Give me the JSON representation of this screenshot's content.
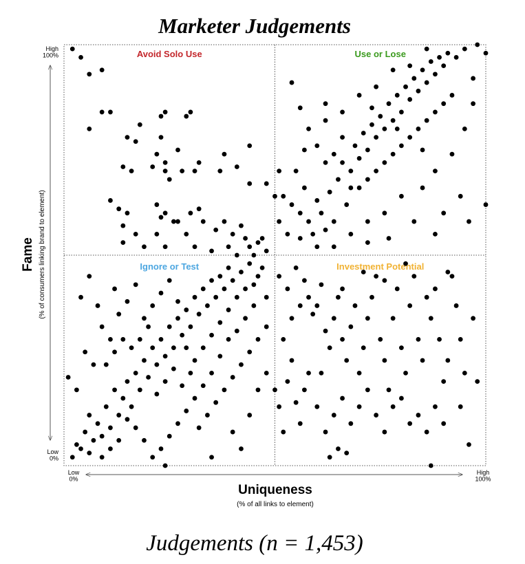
{
  "chart_data": {
    "type": "scatter",
    "title": "Marketer Judgements",
    "caption": "Judgements (n = 1,453)",
    "x_label": "Uniqueness",
    "x_sublabel": "(% of all links to element)",
    "y_label": "Fame",
    "y_sublabel": "(% of consumers linking brand to element)",
    "annotations": [
      {
        "text": "Avoid Solo Use",
        "color": "#c3262b"
      },
      {
        "text": "Use or Lose",
        "color": "#3b9a1e"
      },
      {
        "text": "Ignore or Test",
        "color": "#4ca6e0"
      },
      {
        "text": "Investment Potential",
        "color": "#f1b233"
      }
    ],
    "color": "#000000",
    "xlim": [
      0,
      100
    ],
    "ylim": [
      0,
      100
    ],
    "xticks": [
      {
        "value": 0,
        "label": "Low\n0%"
      },
      {
        "value": 100,
        "label": "High\n100%"
      }
    ],
    "yticks": [
      {
        "value": 0,
        "label": "Low\n0%"
      },
      {
        "value": 100,
        "label": "High\n100%"
      }
    ],
    "x": [
      2,
      4,
      6,
      9,
      9,
      6,
      11,
      23,
      24,
      18,
      15,
      17,
      23,
      22,
      24,
      27,
      29,
      30,
      16,
      14,
      21,
      24,
      25,
      28,
      32,
      31,
      37,
      41,
      44,
      38,
      44,
      48,
      50,
      11,
      13,
      15,
      14,
      17,
      22,
      23,
      24,
      26,
      30,
      32,
      33,
      36,
      38,
      40,
      42,
      43,
      44,
      46,
      47,
      19,
      24,
      29,
      31,
      35,
      39,
      41,
      45,
      48,
      14,
      22,
      27,
      52,
      54,
      56,
      57,
      58,
      59,
      60,
      61,
      62,
      63,
      64,
      65,
      66,
      67,
      68,
      69,
      70,
      71,
      72,
      73,
      74,
      75,
      76,
      77,
      78,
      79,
      80,
      81,
      82,
      83,
      84,
      85,
      86,
      87,
      88,
      89,
      90,
      91,
      93,
      95,
      98,
      97,
      100,
      54,
      56,
      58,
      60,
      62,
      64,
      66,
      68,
      70,
      72,
      74,
      76,
      78,
      80,
      82,
      84,
      86,
      88,
      90,
      92,
      95,
      97,
      92,
      88,
      85,
      80,
      76,
      72,
      68,
      64,
      60,
      56,
      53,
      51,
      55,
      57,
      62,
      66,
      70,
      74,
      78,
      82,
      86,
      94,
      90,
      96,
      100,
      83,
      77,
      72,
      88,
      51,
      62,
      73,
      79,
      85,
      2,
      3,
      4,
      5,
      6,
      7,
      8,
      6,
      9,
      10,
      11,
      12,
      13,
      14,
      15,
      16,
      17,
      18,
      19,
      20,
      21,
      22,
      23,
      24,
      25,
      26,
      27,
      28,
      29,
      30,
      31,
      32,
      33,
      34,
      35,
      36,
      37,
      38,
      39,
      40,
      42,
      44,
      46,
      48,
      45,
      43,
      41,
      39,
      37,
      35,
      33,
      31,
      29,
      27,
      25,
      23,
      21,
      19,
      17,
      15,
      13,
      11,
      9,
      1,
      3,
      5,
      7,
      9,
      11,
      13,
      15,
      17,
      6,
      4,
      8,
      12,
      19,
      21,
      23,
      25,
      27,
      29,
      31,
      33,
      35,
      37,
      39,
      41,
      43,
      45,
      47,
      16,
      18,
      20,
      22,
      24,
      26,
      28,
      30,
      32,
      34,
      36,
      38,
      40,
      42,
      44,
      46,
      48,
      40,
      44,
      46,
      48,
      24,
      35,
      42,
      10,
      12,
      14,
      51,
      53,
      55,
      57,
      58,
      59,
      60,
      61,
      62,
      63,
      64,
      65,
      66,
      67,
      68,
      69,
      70,
      71,
      72,
      73,
      74,
      75,
      76,
      77,
      78,
      79,
      80,
      81,
      82,
      83,
      84,
      85,
      86,
      87,
      88,
      89,
      90,
      91,
      92,
      93,
      94,
      95,
      97,
      98,
      52,
      53,
      54,
      55,
      56,
      57,
      58,
      60,
      62,
      64,
      66,
      68,
      70,
      72,
      74,
      76,
      78,
      80,
      82,
      84,
      86,
      88,
      90,
      63,
      65,
      67,
      50,
      51,
      52,
      54,
      56,
      61,
      66,
      71,
      76,
      81,
      91,
      94,
      96,
      87
    ],
    "values": [
      99,
      97,
      93,
      94,
      84,
      80,
      84,
      83,
      84,
      81,
      78,
      77,
      78,
      74,
      72,
      75,
      83,
      84,
      70,
      71,
      71,
      70,
      68,
      70,
      72,
      70,
      70,
      71,
      76,
      74,
      67,
      67,
      64,
      63,
      61,
      60,
      57,
      55,
      62,
      59,
      60,
      58,
      60,
      61,
      58,
      56,
      58,
      55,
      57,
      54,
      52,
      53,
      54,
      52,
      52,
      55,
      52,
      51,
      52,
      50,
      50,
      51,
      53,
      55,
      58,
      64,
      62,
      60,
      66,
      58,
      55,
      63,
      60,
      56,
      65,
      58,
      68,
      72,
      62,
      70,
      76,
      73,
      79,
      75,
      81,
      78,
      83,
      80,
      86,
      82,
      88,
      84,
      90,
      87,
      92,
      89,
      94,
      91,
      96,
      93,
      97,
      95,
      98,
      97,
      99,
      100,
      92,
      98,
      91,
      85,
      80,
      76,
      82,
      74,
      78,
      66,
      66,
      68,
      70,
      72,
      74,
      76,
      78,
      80,
      82,
      84,
      86,
      88,
      80,
      86,
      74,
      70,
      66,
      64,
      60,
      58,
      55,
      52,
      52,
      54,
      55,
      58,
      70,
      75,
      72,
      84,
      88,
      90,
      94,
      95,
      99,
      64,
      60,
      58,
      62,
      58,
      54,
      53,
      55,
      70,
      86,
      85,
      80,
      75,
      2,
      5,
      4,
      8,
      3,
      6,
      10,
      12,
      7,
      14,
      9,
      18,
      12,
      16,
      20,
      14,
      22,
      18,
      25,
      21,
      28,
      24,
      30,
      26,
      33,
      28,
      35,
      31,
      37,
      33,
      40,
      36,
      42,
      38,
      44,
      40,
      45,
      42,
      47,
      44,
      46,
      48,
      45,
      40,
      38,
      35,
      32,
      30,
      26,
      22,
      19,
      16,
      13,
      10,
      7,
      4,
      2,
      6,
      9,
      11,
      6,
      4,
      2,
      21,
      18,
      27,
      24,
      33,
      30,
      36,
      39,
      43,
      45,
      40,
      38,
      42,
      35,
      38,
      41,
      44,
      39,
      28,
      25,
      28,
      31,
      34,
      37,
      40,
      42,
      43,
      47,
      28,
      30,
      33,
      17,
      20,
      23,
      19,
      22,
      9,
      12,
      15,
      18,
      21,
      24,
      27,
      30,
      33,
      8,
      12,
      18,
      22,
      0,
      2,
      4,
      24,
      27,
      30,
      45,
      42,
      47,
      44,
      40,
      36,
      38,
      43,
      32,
      28,
      35,
      40,
      30,
      25,
      33,
      38,
      22,
      28,
      35,
      40,
      45,
      30,
      25,
      18,
      35,
      42,
      28,
      22,
      38,
      45,
      30,
      25,
      40,
      35,
      42,
      30,
      20,
      25,
      45,
      38,
      30,
      22,
      35,
      20,
      30,
      20,
      25,
      15,
      10,
      18,
      22,
      14,
      8,
      12,
      16,
      10,
      14,
      18,
      12,
      8,
      14,
      16,
      10,
      12,
      8,
      14,
      10,
      2,
      4,
      3,
      18,
      14,
      8,
      35,
      38,
      22,
      42,
      46,
      44,
      48,
      46,
      14,
      5,
      0
    ]
  }
}
